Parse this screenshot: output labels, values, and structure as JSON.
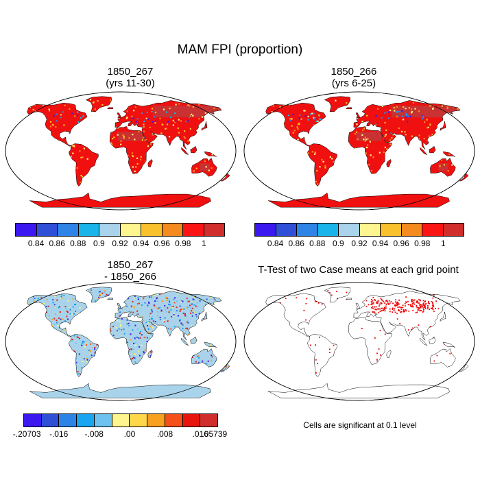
{
  "main_title": "MAM FPI (proportion)",
  "panels": [
    {
      "id": "p1",
      "title_line1": "1850_267",
      "title_line2": "(yrs 11-30)"
    },
    {
      "id": "p2",
      "title_line1": "1850_266",
      "title_line2": "(yrs 6-25)"
    },
    {
      "id": "p3",
      "title_line1": "1850_267",
      "title_line2": "- 1850_266"
    },
    {
      "id": "p4",
      "title_line1": "T-Test of two Case means at each grid point",
      "title_line2": ""
    }
  ],
  "colorbar_main": {
    "colors": [
      "#3b17f0",
      "#2f4fd7",
      "#2e84e6",
      "#19b4ea",
      "#a8d3ea",
      "#fff58e",
      "#f9c12c",
      "#f58a1e",
      "#fb1414",
      "#d22d2d"
    ],
    "labels": [
      "0.84",
      "0.86",
      "0.88",
      "0.9",
      "0.92",
      "0.94",
      "0.96",
      "0.98",
      "1"
    ]
  },
  "colorbar_diff": {
    "colors": [
      "#3b17f0",
      "#2f4fd7",
      "#2e84e6",
      "#19a5ef",
      "#6ec2ef",
      "#fff58e",
      "#ffd74a",
      "#f9a11e",
      "#f5501a",
      "#e8150e",
      "#d22d2d"
    ],
    "labels": [
      "-.20703",
      "-.016",
      "-.008",
      ".00",
      ".008",
      ".016",
      ".05739"
    ]
  },
  "significance_note": "Cells are significant at 0.1 level",
  "colors": {
    "land_high": "#f01010",
    "land_dark": "#c83232",
    "ocean": "#ffffff",
    "coast": "#000000",
    "diff_base": "#a8d3ea",
    "sig": "#ee0000"
  }
}
